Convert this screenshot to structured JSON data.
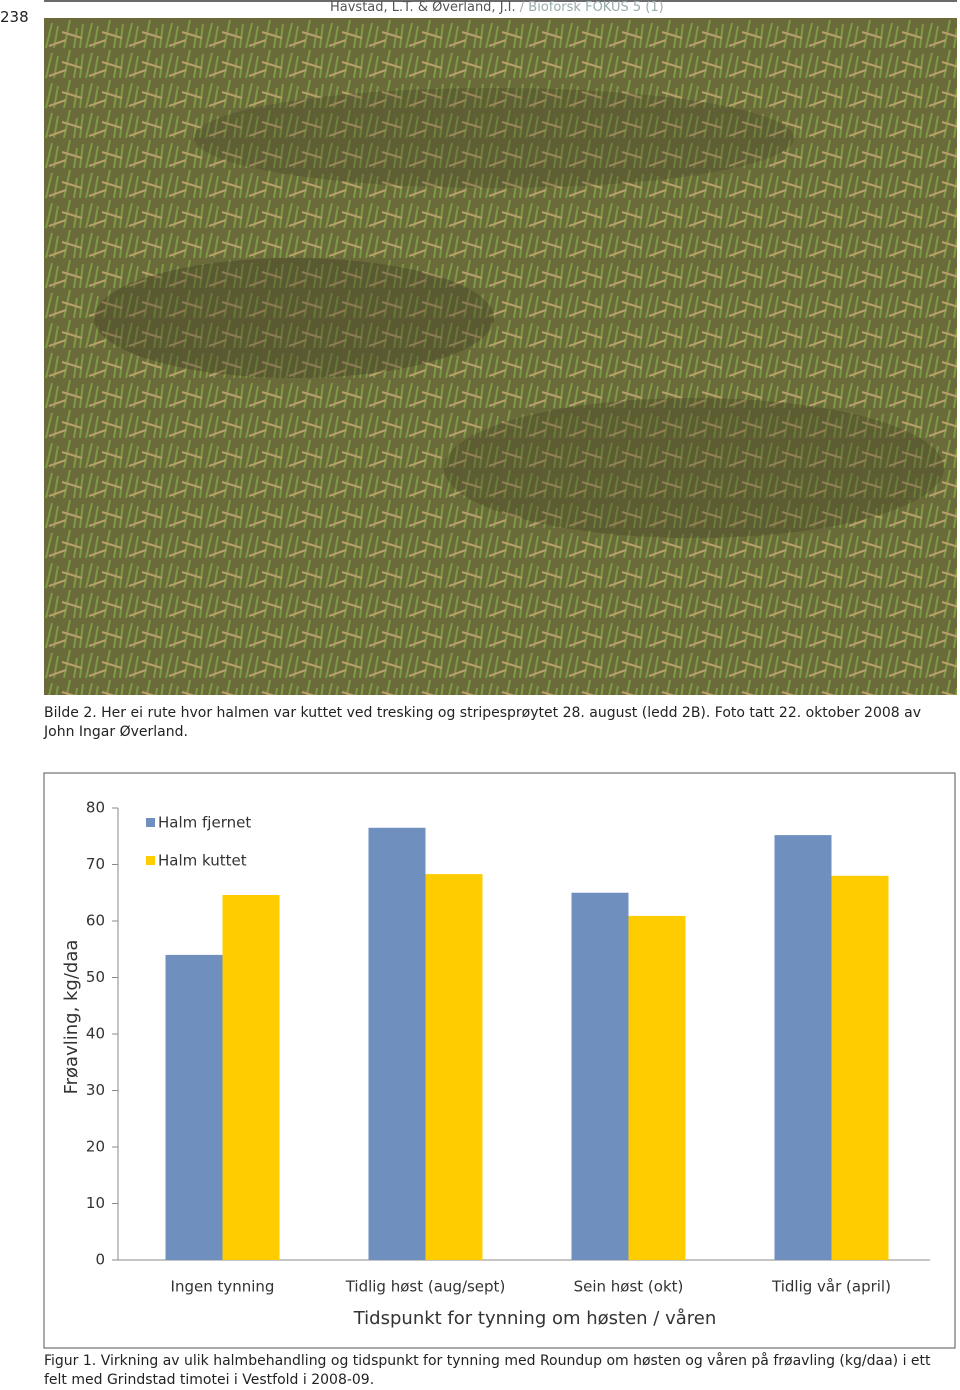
{
  "header": {
    "page_number": "238",
    "authors": "Havstad, L.T. & Øverland, J.I.",
    "journal": "/ Bioforsk FOKUS 5 (1)"
  },
  "photo_caption": "Bilde 2. Her ei rute hvor halmen var kuttet ved tresking og stripesprøytet 28. august (ledd 2B). Foto tatt 22. oktober 2008 av John Ingar Øverland.",
  "chart_data": {
    "type": "bar",
    "y_label": "Frøavling, kg/daa",
    "x_label": "Tidspunkt for tynning om høsten  / våren",
    "categories": [
      "Ingen tynning",
      "Tidlig høst (aug/sept)",
      "Sein høst (okt)",
      "Tidlig vår (april)"
    ],
    "series": [
      {
        "name": "Halm fjernet",
        "color": "#6f8fbf",
        "values": [
          54.0,
          76.5,
          65.0,
          75.2
        ]
      },
      {
        "name": "Halm kuttet",
        "color": "#ffcc00",
        "values": [
          64.6,
          68.3,
          60.9,
          68.0
        ]
      }
    ],
    "ylim": [
      0,
      80
    ],
    "yticks": [
      0,
      10,
      20,
      30,
      40,
      50,
      60,
      70,
      80
    ],
    "legend": "top-left"
  },
  "figure_caption": "Figur 1. Virkning av ulik halmbehandling og tidspunkt for tynning med Roundup om høsten og våren på frøavling (kg/daa) i ett felt med Grindstad timotei i Vestfold i 2008-09."
}
